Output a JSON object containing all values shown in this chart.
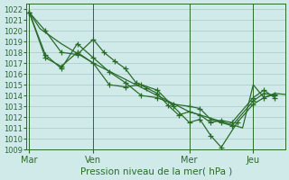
{
  "xlabel": "Pression niveau de la mer( hPa )",
  "background_color": "#d0eaea",
  "grid_color": "#a8c8c8",
  "line_color": "#2a6b2a",
  "ylim": [
    1009,
    1022.5
  ],
  "yticks": [
    1009,
    1010,
    1011,
    1012,
    1013,
    1014,
    1015,
    1016,
    1017,
    1018,
    1019,
    1020,
    1021,
    1022
  ],
  "xtick_labels": [
    "Mar",
    "Ven",
    "Mer",
    "Jeu"
  ],
  "xtick_positions": [
    0,
    24,
    60,
    84
  ],
  "xlim": [
    -1,
    96
  ],
  "vlines": [
    0,
    24,
    60,
    84
  ],
  "series": [
    {
      "x": [
        0,
        4,
        8,
        12,
        16,
        20,
        24,
        28,
        32,
        36,
        40,
        44,
        48,
        52,
        56,
        60,
        64,
        68,
        72,
        76,
        80,
        84,
        88,
        92,
        96
      ],
      "y": [
        1021.7,
        1020.2,
        1019.5,
        1018.8,
        1018.2,
        1017.6,
        1017.0,
        1016.5,
        1016.0,
        1015.5,
        1015.0,
        1014.5,
        1014.0,
        1013.5,
        1013.0,
        1012.5,
        1012.2,
        1011.9,
        1011.6,
        1011.3,
        1011.0,
        1015.0,
        1013.8,
        1014.2,
        1014.1
      ],
      "has_markers": false
    },
    {
      "x": [
        0,
        6,
        12,
        18,
        24,
        28,
        32,
        36,
        40,
        44,
        48,
        52,
        56,
        60,
        64,
        68,
        72,
        76,
        84,
        88,
        92
      ],
      "y": [
        1021.7,
        1020.0,
        1018.0,
        1017.8,
        1019.2,
        1018.0,
        1017.2,
        1016.5,
        1015.2,
        1014.7,
        1014.2,
        1013.1,
        1012.2,
        1012.5,
        1012.2,
        1011.5,
        1011.7,
        1011.5,
        1013.8,
        1014.5,
        1013.8
      ],
      "has_markers": true
    },
    {
      "x": [
        0,
        6,
        12,
        18,
        24,
        30,
        36,
        42,
        48,
        54,
        60,
        64,
        68,
        72,
        76,
        84,
        88,
        92
      ],
      "y": [
        1021.7,
        1017.8,
        1016.5,
        1018.8,
        1017.5,
        1016.2,
        1015.2,
        1014.0,
        1013.8,
        1013.2,
        1013.0,
        1012.8,
        1011.8,
        1011.5,
        1011.2,
        1013.5,
        1014.2,
        1014.0
      ],
      "has_markers": true
    },
    {
      "x": [
        0,
        6,
        12,
        18,
        24,
        30,
        36,
        42,
        48,
        54,
        60,
        64,
        68,
        72,
        78,
        84,
        88,
        92
      ],
      "y": [
        1021.7,
        1017.5,
        1016.7,
        1018.0,
        1017.0,
        1015.0,
        1014.8,
        1015.0,
        1014.5,
        1013.0,
        1011.5,
        1011.8,
        1010.3,
        1009.2,
        1011.5,
        1013.2,
        1013.8,
        1014.1
      ],
      "has_markers": true
    }
  ]
}
